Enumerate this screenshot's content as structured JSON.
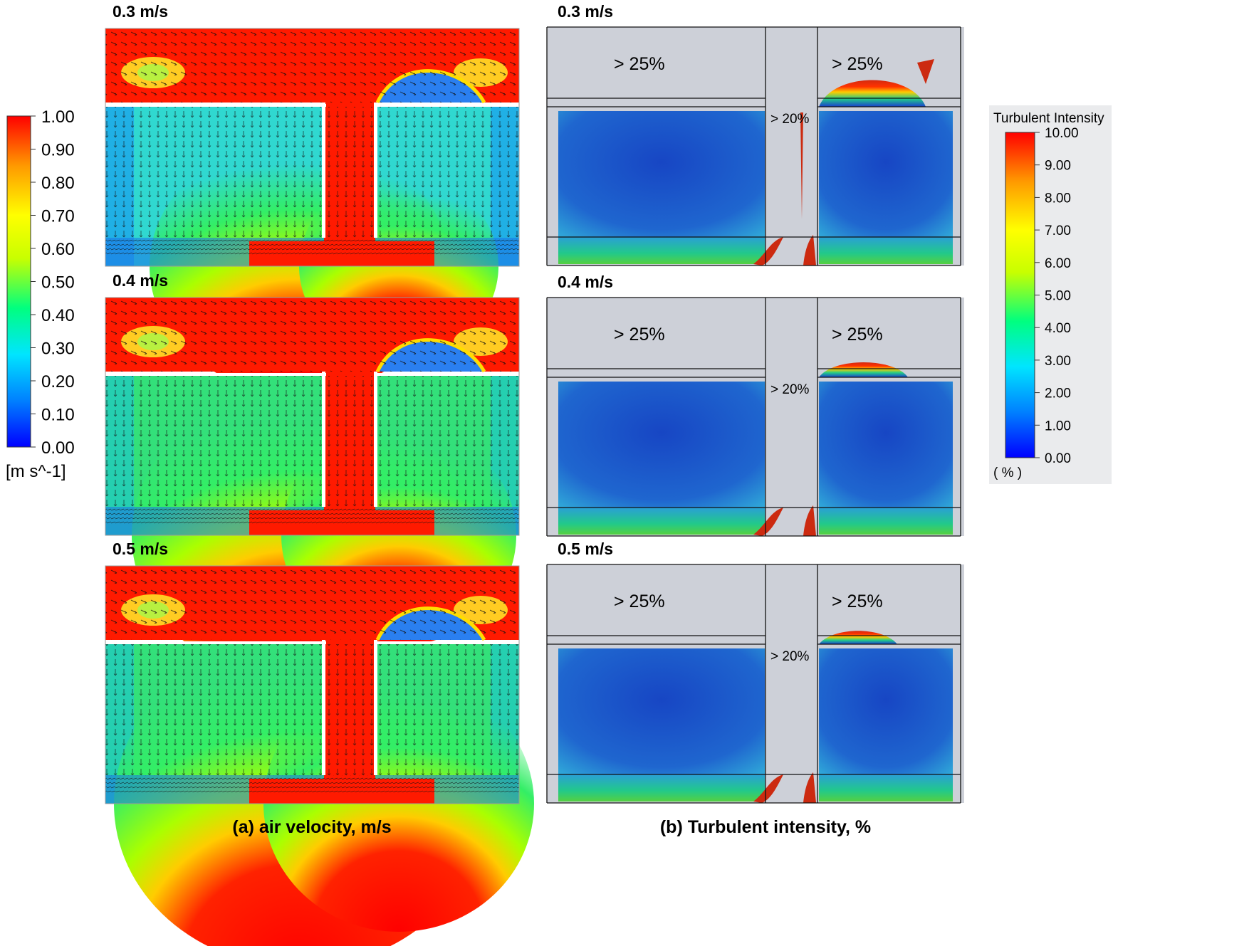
{
  "colors": {
    "jet_stops": [
      "#0000ff",
      "#0080ff",
      "#00e5ff",
      "#00ff7f",
      "#c8ff00",
      "#ffff00",
      "#ff9900",
      "#ff0000"
    ],
    "velocity_low": "#1a8cff",
    "velocity_mid": "#33d9c8",
    "velocity_high": "#ff1a00",
    "ti_background": "#cdd0d8",
    "ti_low": "#1f5fc8"
  },
  "velocity_panels": [
    {
      "title": "0.3 m/s"
    },
    {
      "title": "0.4 m/s"
    },
    {
      "title": "0.5 m/s"
    }
  ],
  "ti_panels": [
    {
      "title": "0.3 m/s",
      "left_label": "> 25%",
      "right_label": "> 25%",
      "center_label": "> 20%"
    },
    {
      "title": "0.4 m/s",
      "left_label": "> 25%",
      "right_label": "> 25%",
      "center_label": "> 20%"
    },
    {
      "title": "0.5 m/s",
      "left_label": "> 25%",
      "right_label": "> 25%",
      "center_label": "> 20%"
    }
  ],
  "velocity_legend": {
    "ticks": [
      "1.00",
      "0.90",
      "0.80",
      "0.70",
      "0.60",
      "0.50",
      "0.40",
      "0.30",
      "0.20",
      "0.10",
      "0.00"
    ],
    "unit": "[m s^-1]"
  },
  "ti_legend": {
    "title": "Turbulent Intensity",
    "ticks": [
      "10.00",
      "9.00",
      "8.00",
      "7.00",
      "6.00",
      "5.00",
      "4.00",
      "3.00",
      "2.00",
      "1.00",
      "0.00"
    ],
    "unit": "( % )"
  },
  "captions": {
    "left": "(a) air velocity, m/s",
    "right": "(b) Turbulent intensity, %"
  }
}
